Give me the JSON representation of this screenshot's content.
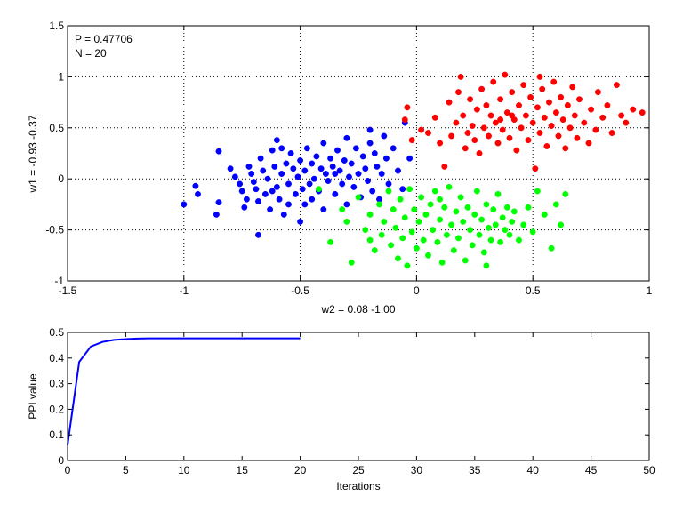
{
  "chart_data": [
    {
      "type": "scatter",
      "xlabel": "w2 = 0.08  -1.00",
      "ylabel": "w1 = -0.93  -0.37",
      "xlim": [
        -1.5,
        1
      ],
      "ylim": [
        -1,
        1.5
      ],
      "xticks": [
        -1.5,
        -1,
        -0.5,
        0,
        0.5,
        1
      ],
      "xtick_labels": [
        "-1.5",
        "-1",
        "-0.5",
        "0",
        "0.5",
        "1"
      ],
      "yticks": [
        -1,
        -0.5,
        0,
        0.5,
        1,
        1.5
      ],
      "ytick_labels": [
        "-1",
        "-0.5",
        "0",
        "0.5",
        "1",
        "1.5"
      ],
      "grid": "dotted",
      "annotations": [
        "P = 0.47706",
        "N = 20"
      ],
      "series": [
        {
          "color": "#0000ff",
          "points": [
            [
              -1.0,
              -0.25
            ],
            [
              -0.95,
              -0.07
            ],
            [
              -0.94,
              -0.15
            ],
            [
              -0.86,
              -0.35
            ],
            [
              -0.85,
              -0.23
            ],
            [
              -0.85,
              0.27
            ],
            [
              -0.8,
              0.1
            ],
            [
              -0.78,
              0.02
            ],
            [
              -0.76,
              -0.05
            ],
            [
              -0.75,
              -0.12
            ],
            [
              -0.74,
              -0.28
            ],
            [
              -0.73,
              -0.2
            ],
            [
              -0.72,
              0.12
            ],
            [
              -0.71,
              0.05
            ],
            [
              -0.7,
              -0.03
            ],
            [
              -0.69,
              -0.1
            ],
            [
              -0.68,
              -0.22
            ],
            [
              -0.68,
              -0.55
            ],
            [
              -0.67,
              0.2
            ],
            [
              -0.66,
              0.08
            ],
            [
              -0.65,
              -0.15
            ],
            [
              -0.64,
              0.0
            ],
            [
              -0.63,
              -0.3
            ],
            [
              -0.62,
              0.28
            ],
            [
              -0.61,
              0.12
            ],
            [
              -0.6,
              -0.08
            ],
            [
              -0.6,
              0.38
            ],
            [
              -0.59,
              -0.2
            ],
            [
              -0.58,
              0.05
            ],
            [
              -0.57,
              -0.35
            ],
            [
              -0.56,
              0.15
            ],
            [
              -0.55,
              -0.05
            ],
            [
              -0.55,
              -0.25
            ],
            [
              -0.54,
              0.25
            ],
            [
              -0.53,
              0.1
            ],
            [
              -0.52,
              -0.15
            ],
            [
              -0.51,
              0.02
            ],
            [
              -0.5,
              0.18
            ],
            [
              -0.5,
              -0.42
            ],
            [
              -0.49,
              -0.1
            ],
            [
              -0.48,
              0.08
            ],
            [
              -0.47,
              0.3
            ],
            [
              -0.46,
              -0.05
            ],
            [
              -0.45,
              0.15
            ],
            [
              -0.45,
              -0.2
            ],
            [
              -0.44,
              0.0
            ],
            [
              -0.43,
              0.22
            ],
            [
              -0.42,
              -0.12
            ],
            [
              -0.41,
              0.1
            ],
            [
              -0.4,
              0.35
            ],
            [
              -0.4,
              -0.3
            ],
            [
              -0.39,
              0.05
            ],
            [
              -0.38,
              -0.02
            ],
            [
              -0.37,
              0.2
            ],
            [
              -0.36,
              0.12
            ],
            [
              -0.35,
              -0.15
            ],
            [
              -0.34,
              0.28
            ],
            [
              -0.33,
              0.08
            ],
            [
              -0.32,
              -0.05
            ],
            [
              -0.31,
              0.18
            ],
            [
              -0.3,
              0.4
            ],
            [
              -0.3,
              -0.25
            ],
            [
              -0.29,
              0.02
            ],
            [
              -0.28,
              0.15
            ],
            [
              -0.27,
              -0.08
            ],
            [
              -0.26,
              0.3
            ],
            [
              -0.25,
              0.05
            ],
            [
              -0.24,
              -0.18
            ],
            [
              -0.23,
              0.22
            ],
            [
              -0.22,
              0.1
            ],
            [
              -0.21,
              -0.02
            ],
            [
              -0.2,
              0.48
            ],
            [
              -0.2,
              0.35
            ],
            [
              -0.19,
              -0.12
            ],
            [
              -0.18,
              0.25
            ],
            [
              -0.17,
              0.12
            ],
            [
              -0.16,
              -0.2
            ],
            [
              -0.15,
              0.05
            ],
            [
              -0.14,
              0.42
            ],
            [
              -0.13,
              0.2
            ],
            [
              -0.12,
              -0.05
            ],
            [
              -0.1,
              0.3
            ],
            [
              -0.08,
              0.08
            ],
            [
              -0.06,
              -0.1
            ],
            [
              -0.05,
              0.55
            ],
            [
              -0.03,
              0.2
            ],
            [
              -0.58,
              0.3
            ],
            [
              -0.62,
              -0.12
            ],
            [
              -0.48,
              -0.25
            ],
            [
              -0.35,
              0.05
            ]
          ]
        },
        {
          "color": "#ff0000",
          "points": [
            [
              -0.05,
              0.58
            ],
            [
              -0.04,
              0.7
            ],
            [
              -0.02,
              0.38
            ],
            [
              0.02,
              0.48
            ],
            [
              0.05,
              0.45
            ],
            [
              0.08,
              0.6
            ],
            [
              0.1,
              0.35
            ],
            [
              0.12,
              0.12
            ],
            [
              0.14,
              0.75
            ],
            [
              0.15,
              0.42
            ],
            [
              0.17,
              0.55
            ],
            [
              0.18,
              0.85
            ],
            [
              0.19,
              1.0
            ],
            [
              0.2,
              0.62
            ],
            [
              0.21,
              0.3
            ],
            [
              0.22,
              0.45
            ],
            [
              0.23,
              0.78
            ],
            [
              0.24,
              0.52
            ],
            [
              0.25,
              0.38
            ],
            [
              0.26,
              0.68
            ],
            [
              0.27,
              0.25
            ],
            [
              0.28,
              0.88
            ],
            [
              0.29,
              0.5
            ],
            [
              0.3,
              0.72
            ],
            [
              0.31,
              0.42
            ],
            [
              0.32,
              0.62
            ],
            [
              0.33,
              0.95
            ],
            [
              0.34,
              0.55
            ],
            [
              0.35,
              0.35
            ],
            [
              0.36,
              0.78
            ],
            [
              0.37,
              0.48
            ],
            [
              0.38,
              1.02
            ],
            [
              0.39,
              0.65
            ],
            [
              0.4,
              0.4
            ],
            [
              0.41,
              0.85
            ],
            [
              0.42,
              0.58
            ],
            [
              0.43,
              0.28
            ],
            [
              0.44,
              0.72
            ],
            [
              0.45,
              0.5
            ],
            [
              0.46,
              0.92
            ],
            [
              0.47,
              0.62
            ],
            [
              0.48,
              0.38
            ],
            [
              0.49,
              0.8
            ],
            [
              0.5,
              0.55
            ],
            [
              0.51,
              0.1
            ],
            [
              0.52,
              0.7
            ],
            [
              0.53,
              0.45
            ],
            [
              0.54,
              0.88
            ],
            [
              0.55,
              0.6
            ],
            [
              0.56,
              0.32
            ],
            [
              0.57,
              0.75
            ],
            [
              0.58,
              0.52
            ],
            [
              0.59,
              0.95
            ],
            [
              0.6,
              0.65
            ],
            [
              0.61,
              0.42
            ],
            [
              0.62,
              0.8
            ],
            [
              0.63,
              0.58
            ],
            [
              0.64,
              0.3
            ],
            [
              0.65,
              0.72
            ],
            [
              0.66,
              0.5
            ],
            [
              0.67,
              0.9
            ],
            [
              0.68,
              0.62
            ],
            [
              0.69,
              0.4
            ],
            [
              0.7,
              0.78
            ],
            [
              0.72,
              0.55
            ],
            [
              0.74,
              0.35
            ],
            [
              0.75,
              0.68
            ],
            [
              0.77,
              0.48
            ],
            [
              0.78,
              0.85
            ],
            [
              0.8,
              0.6
            ],
            [
              0.82,
              0.72
            ],
            [
              0.84,
              0.45
            ],
            [
              0.86,
              0.92
            ],
            [
              0.88,
              0.62
            ],
            [
              0.9,
              0.55
            ],
            [
              0.93,
              0.68
            ],
            [
              0.97,
              0.65
            ],
            [
              0.53,
              1.0
            ],
            [
              0.41,
              0.62
            ],
            [
              0.36,
              0.58
            ]
          ]
        },
        {
          "color": "#00ff00",
          "points": [
            [
              -0.42,
              -0.1
            ],
            [
              -0.37,
              -0.62
            ],
            [
              -0.32,
              -0.3
            ],
            [
              -0.28,
              -0.82
            ],
            [
              -0.25,
              -0.18
            ],
            [
              -0.22,
              -0.5
            ],
            [
              -0.2,
              -0.35
            ],
            [
              -0.18,
              -0.7
            ],
            [
              -0.16,
              -0.25
            ],
            [
              -0.15,
              -0.55
            ],
            [
              -0.14,
              -0.42
            ],
            [
              -0.12,
              -0.12
            ],
            [
              -0.11,
              -0.65
            ],
            [
              -0.1,
              -0.3
            ],
            [
              -0.09,
              -0.48
            ],
            [
              -0.08,
              -0.78
            ],
            [
              -0.07,
              -0.2
            ],
            [
              -0.06,
              -0.58
            ],
            [
              -0.05,
              -0.38
            ],
            [
              -0.04,
              -0.85
            ],
            [
              -0.03,
              -0.1
            ],
            [
              -0.02,
              -0.52
            ],
            [
              -0.01,
              -0.3
            ],
            [
              0.0,
              -0.68
            ],
            [
              0.01,
              -0.42
            ],
            [
              0.02,
              -0.18
            ],
            [
              0.03,
              -0.6
            ],
            [
              0.04,
              -0.35
            ],
            [
              0.05,
              -0.75
            ],
            [
              0.06,
              -0.25
            ],
            [
              0.07,
              -0.5
            ],
            [
              0.08,
              -0.12
            ],
            [
              0.09,
              -0.62
            ],
            [
              0.1,
              -0.4
            ],
            [
              0.11,
              -0.82
            ],
            [
              0.12,
              -0.28
            ],
            [
              0.13,
              -0.55
            ],
            [
              0.14,
              -0.08
            ],
            [
              0.15,
              -0.45
            ],
            [
              0.16,
              -0.7
            ],
            [
              0.17,
              -0.32
            ],
            [
              0.18,
              -0.58
            ],
            [
              0.19,
              -0.18
            ],
            [
              0.2,
              -0.42
            ],
            [
              0.21,
              -0.8
            ],
            [
              0.22,
              -0.28
            ],
            [
              0.23,
              -0.5
            ],
            [
              0.24,
              -0.65
            ],
            [
              0.25,
              -0.35
            ],
            [
              0.26,
              -0.12
            ],
            [
              0.27,
              -0.55
            ],
            [
              0.28,
              -0.4
            ],
            [
              0.29,
              -0.72
            ],
            [
              0.3,
              -0.25
            ],
            [
              0.31,
              -0.48
            ],
            [
              0.32,
              -0.6
            ],
            [
              0.33,
              -0.3
            ],
            [
              0.34,
              -0.45
            ],
            [
              0.35,
              -0.15
            ],
            [
              0.36,
              -0.62
            ],
            [
              0.37,
              -0.38
            ],
            [
              0.38,
              -0.5
            ],
            [
              0.39,
              -0.28
            ],
            [
              0.4,
              -0.55
            ],
            [
              0.41,
              -0.42
            ],
            [
              0.42,
              -0.32
            ],
            [
              0.44,
              -0.6
            ],
            [
              0.46,
              -0.45
            ],
            [
              0.48,
              -0.28
            ],
            [
              0.5,
              -0.52
            ],
            [
              0.52,
              -0.12
            ],
            [
              0.55,
              -0.35
            ],
            [
              0.58,
              -0.68
            ],
            [
              0.6,
              -0.25
            ],
            [
              0.62,
              -0.45
            ],
            [
              0.64,
              -0.15
            ],
            [
              -0.3,
              -0.42
            ],
            [
              0.1,
              -0.2
            ],
            [
              -0.2,
              -0.6
            ],
            [
              0.3,
              -0.85
            ]
          ]
        }
      ]
    },
    {
      "type": "line",
      "xlabel": "Iterations",
      "ylabel": "PPI value",
      "xlim": [
        0,
        50
      ],
      "ylim": [
        0,
        0.5
      ],
      "xticks": [
        0,
        5,
        10,
        15,
        20,
        25,
        30,
        35,
        40,
        45,
        50
      ],
      "xtick_labels": [
        "0",
        "5",
        "10",
        "15",
        "20",
        "25",
        "30",
        "35",
        "40",
        "45",
        "50"
      ],
      "yticks": [
        0,
        0.1,
        0.2,
        0.3,
        0.4,
        0.5
      ],
      "ytick_labels": [
        "0",
        "0.1",
        "0.2",
        "0.3",
        "0.4",
        "0.5"
      ],
      "grid": "off",
      "series": [
        {
          "color": "#0000ff",
          "x": [
            0,
            1,
            2,
            3,
            4,
            5,
            6,
            7,
            8,
            9,
            10,
            11,
            12,
            13,
            14,
            15,
            16,
            17,
            18,
            19,
            20
          ],
          "values": [
            0.06,
            0.385,
            0.445,
            0.463,
            0.471,
            0.474,
            0.476,
            0.477,
            0.477,
            0.477,
            0.477,
            0.477,
            0.477,
            0.477,
            0.477,
            0.477,
            0.477,
            0.477,
            0.477,
            0.477,
            0.477
          ]
        }
      ]
    }
  ]
}
